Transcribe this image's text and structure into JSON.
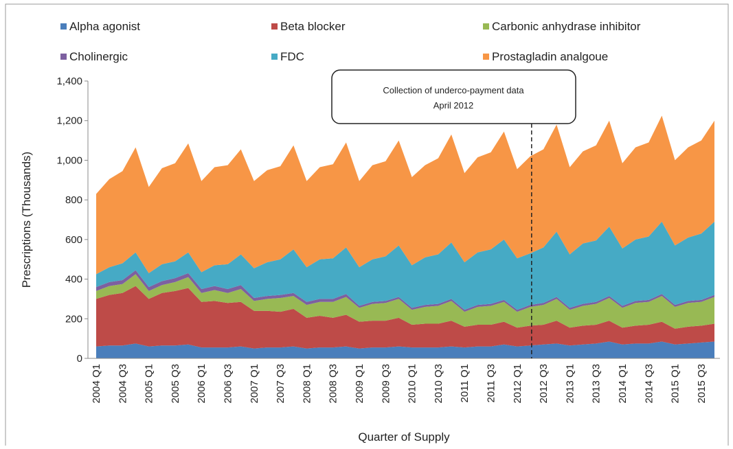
{
  "chart_data": {
    "type": "stacked_area",
    "x_label": "Quarter of Supply",
    "y_label": "Prescriptions (Thousands)",
    "annotation": {
      "lines": [
        "Collection of underco-payment data",
        "April 2012"
      ]
    },
    "categories": [
      "2004 Q1",
      null,
      "2004 Q3",
      null,
      "2005 Q1",
      null,
      "2005 Q3",
      null,
      "2006 Q1",
      null,
      "2006 Q3",
      null,
      "2007 Q1",
      null,
      "2007 Q3",
      null,
      "2008 Q1",
      null,
      "2008 Q3",
      null,
      "2009 Q1",
      null,
      "2009 Q3",
      null,
      "2010 Q1",
      null,
      "2010 Q3",
      null,
      "2011 Q1",
      null,
      "2011 Q3",
      null,
      "2012 Q1",
      null,
      "2012 Q3",
      null,
      "2013 Q1",
      null,
      "2013 Q3",
      null,
      "2014 Q1",
      null,
      "2014 Q3",
      null,
      "2015 Q1",
      null,
      "2015 Q3",
      null
    ],
    "ylim": [
      0,
      1400
    ],
    "yticks": [
      0,
      200,
      400,
      600,
      800,
      {
        "value": 1000,
        "label": "1,000"
      },
      {
        "value": 1200,
        "label": "1,200"
      },
      {
        "value": 1400,
        "label": "1,400"
      }
    ],
    "series": [
      {
        "name": "Alpha agonist",
        "color": "#4a7ebb",
        "values": [
          60,
          65,
          65,
          75,
          60,
          65,
          65,
          70,
          55,
          55,
          55,
          60,
          50,
          55,
          55,
          60,
          50,
          55,
          55,
          60,
          50,
          55,
          55,
          60,
          55,
          55,
          55,
          60,
          55,
          60,
          60,
          70,
          60,
          65,
          70,
          75,
          65,
          70,
          75,
          85,
          70,
          75,
          75,
          85,
          70,
          75,
          80,
          85
        ]
      },
      {
        "name": "Beta blocker",
        "color": "#be4b48",
        "values": [
          240,
          255,
          265,
          290,
          240,
          265,
          275,
          285,
          230,
          235,
          225,
          225,
          190,
          185,
          180,
          190,
          155,
          160,
          150,
          160,
          135,
          135,
          135,
          145,
          115,
          120,
          120,
          130,
          105,
          110,
          110,
          115,
          95,
          100,
          100,
          115,
          90,
          95,
          95,
          105,
          85,
          90,
          95,
          100,
          80,
          85,
          85,
          90
        ]
      },
      {
        "name": "Carbonic anhydrase inhibitor",
        "color": "#98b954",
        "values": [
          40,
          45,
          45,
          60,
          40,
          40,
          45,
          55,
          45,
          55,
          50,
          65,
          50,
          60,
          70,
          65,
          65,
          70,
          80,
          90,
          70,
          85,
          90,
          95,
          75,
          85,
          90,
          100,
          75,
          90,
          95,
          100,
          80,
          95,
          100,
          110,
          90,
          100,
          105,
          115,
          100,
          115,
          115,
          130,
          110,
          120,
          120,
          135
        ]
      },
      {
        "name": "Cholinergic",
        "color": "#7d60a0",
        "values": [
          20,
          20,
          20,
          20,
          20,
          20,
          20,
          20,
          20,
          20,
          20,
          20,
          15,
          15,
          15,
          15,
          15,
          15,
          15,
          15,
          10,
          10,
          10,
          10,
          10,
          10,
          10,
          10,
          10,
          10,
          10,
          10,
          10,
          10,
          10,
          10,
          10,
          10,
          10,
          10,
          10,
          10,
          10,
          10,
          10,
          10,
          10,
          10
        ]
      },
      {
        "name": "FDC",
        "color": "#46aac5",
        "values": [
          65,
          75,
          85,
          90,
          70,
          85,
          85,
          105,
          85,
          105,
          125,
          155,
          150,
          170,
          180,
          220,
          175,
          200,
          205,
          235,
          195,
          215,
          225,
          260,
          215,
          240,
          250,
          285,
          240,
          265,
          275,
          305,
          260,
          260,
          280,
          330,
          270,
          305,
          310,
          350,
          290,
          310,
          320,
          365,
          300,
          320,
          335,
          370
        ]
      },
      {
        "name": "Prostagladin analgoue",
        "color": "#f79646",
        "values": [
          405,
          445,
          465,
          530,
          435,
          485,
          495,
          550,
          460,
          495,
          500,
          530,
          440,
          465,
          470,
          525,
          435,
          465,
          475,
          530,
          435,
          475,
          480,
          530,
          445,
          465,
          485,
          545,
          450,
          480,
          490,
          545,
          450,
          490,
          495,
          540,
          440,
          465,
          480,
          535,
          430,
          465,
          475,
          535,
          430,
          455,
          470,
          510
        ]
      }
    ]
  }
}
